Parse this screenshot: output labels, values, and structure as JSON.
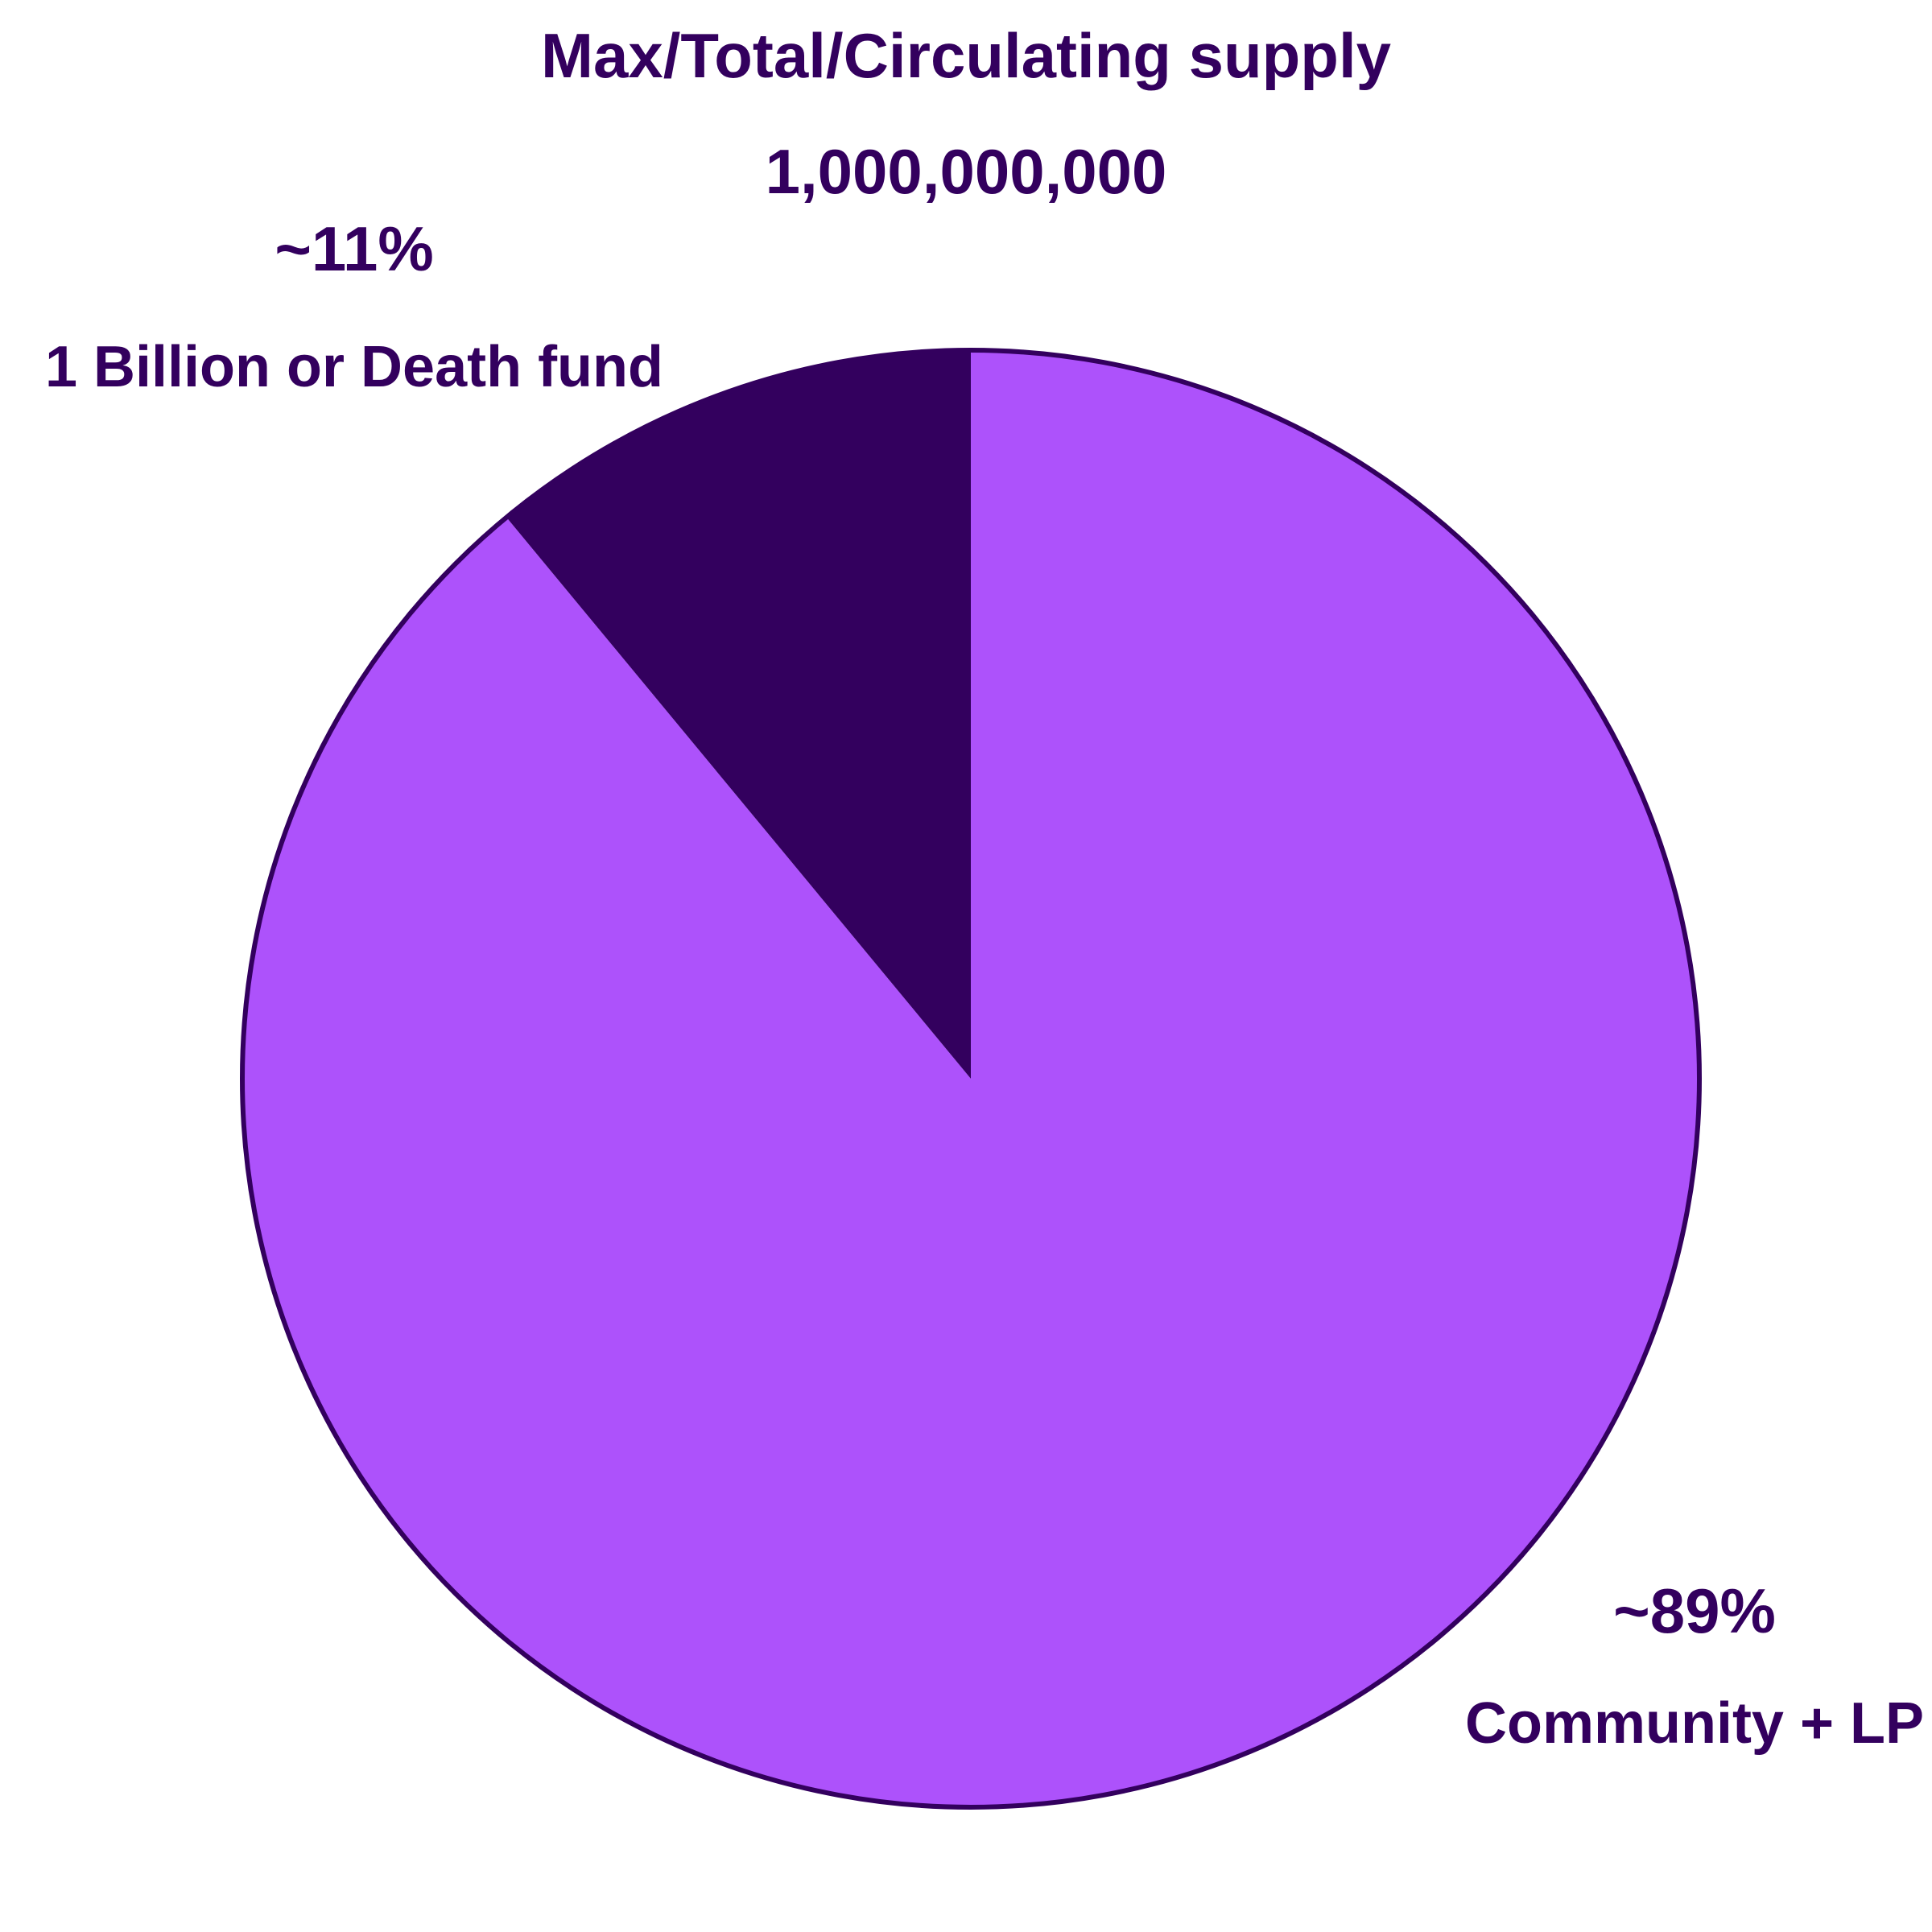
{
  "chart_data": {
    "type": "pie",
    "title": "Max/Total/Circulating supply",
    "subtitle": "1,000,000,000",
    "start_angle_deg": 0,
    "direction": "clockwise",
    "slices": [
      {
        "name": "Community + LP",
        "value": 89,
        "label": "~89%",
        "color": "#ad52fb"
      },
      {
        "name": "1 Billion or Death fund",
        "value": 11,
        "label": "~11%",
        "color": "#33005e"
      }
    ],
    "outline_color": "#33005e"
  }
}
